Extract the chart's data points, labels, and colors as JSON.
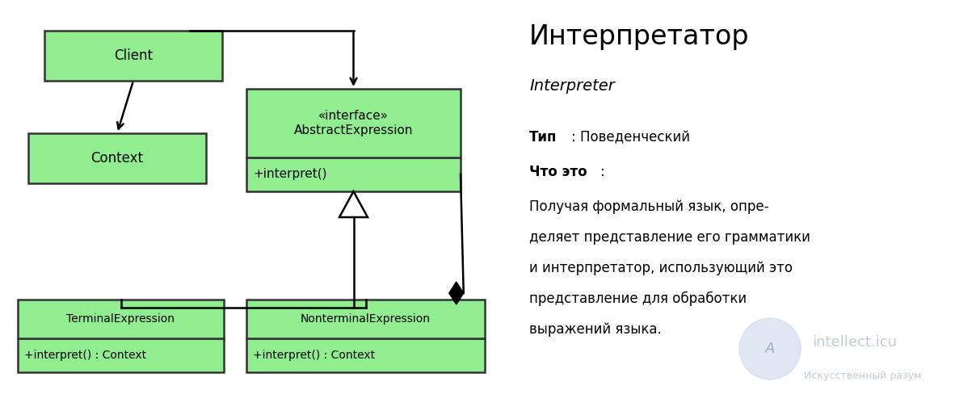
{
  "bg_color": "#ffffff",
  "green_fill": "#90EE90",
  "green_border": "#333333",
  "title": "Интерпретатор",
  "subtitle": "Interpreter",
  "type_bold": "Тип",
  "type_rest": ": Поведенческий",
  "what_bold": "Что это",
  "what_rest": ":",
  "description_lines": [
    "Получая формальный язык, опре-",
    "деляет представление его грамматики",
    "и интерпретатор, использующий это",
    "представление для обработки",
    "выражений языка."
  ],
  "watermark_text": "intellect.icu",
  "watermark_sub": "Искусственный разум",
  "fig_w": 12.03,
  "fig_h": 5.09,
  "dpi": 100
}
